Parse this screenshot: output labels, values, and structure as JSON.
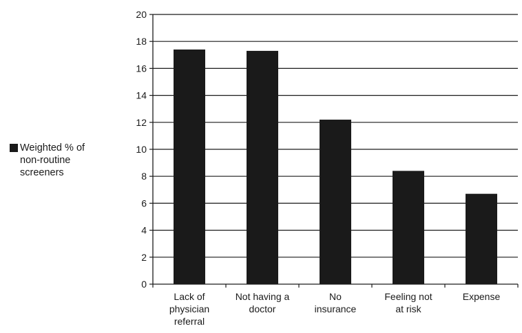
{
  "chart_data": {
    "type": "bar",
    "categories": [
      [
        "Lack of",
        "physician",
        "referral"
      ],
      [
        "Not having a",
        "doctor"
      ],
      [
        "No",
        "insurance"
      ],
      [
        "Feeling not",
        "at risk"
      ],
      [
        "Expense"
      ]
    ],
    "series": [
      {
        "name": "Weighted % of non-routine screeners",
        "values": [
          17.4,
          17.3,
          12.2,
          8.4,
          6.7
        ],
        "color": "#1a1a1a"
      }
    ],
    "ylim": [
      0,
      20
    ],
    "yticks": [
      0,
      2,
      4,
      6,
      8,
      10,
      12,
      14,
      16,
      18,
      20
    ],
    "grid": true,
    "legend_position": "left",
    "xlabel": "",
    "ylabel": "",
    "title": ""
  },
  "legend": {
    "label": "Weighted % of\nnon-routine\nscreeners",
    "swatch_color": "#1a1a1a"
  }
}
